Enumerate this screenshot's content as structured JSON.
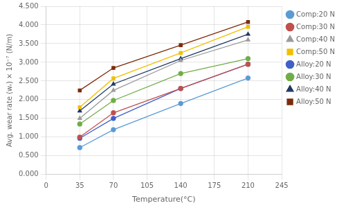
{
  "chart_data": {
    "type": "line",
    "x": [
      35,
      70,
      140,
      210
    ],
    "series": [
      {
        "name": "Comp:20 N",
        "color": "#5B9BD5",
        "marker": "circle",
        "values": [
          0.72,
          1.2,
          1.9,
          2.58
        ]
      },
      {
        "name": "Comp:30 N",
        "color": "#C0504D",
        "marker": "circle",
        "values": [
          1.0,
          1.65,
          2.3,
          2.95
        ]
      },
      {
        "name": "Comp:40 N",
        "color": "#9B9B9B",
        "marker": "triangle",
        "values": [
          1.5,
          2.25,
          3.05,
          3.6
        ]
      },
      {
        "name": "Comp:50 N",
        "color": "#F0C000",
        "marker": "square",
        "values": [
          1.8,
          2.57,
          3.25,
          3.95
        ]
      },
      {
        "name": "Alloy:20 N",
        "color": "#4060C8",
        "marker": "circle",
        "values": [
          0.97,
          1.5,
          2.3,
          2.95
        ]
      },
      {
        "name": "Alloy:30 N",
        "color": "#70AD47",
        "marker": "circle",
        "values": [
          1.35,
          1.98,
          2.7,
          3.1
        ]
      },
      {
        "name": "Alloy:40 N",
        "color": "#1F3864",
        "marker": "triangle",
        "values": [
          1.7,
          2.42,
          3.1,
          3.75
        ]
      },
      {
        "name": "Alloy:50 N",
        "color": "#7B2C0A",
        "marker": "square",
        "values": [
          2.25,
          2.85,
          3.46,
          4.08
        ]
      }
    ],
    "xlabel": "Temperature(°C)",
    "ylabel": "Avg. wear rate (wᵣ) × 10⁻⁷ (N/m)",
    "xlim": [
      0,
      245
    ],
    "ylim": [
      0.0,
      4.5
    ],
    "xticks": [
      0,
      35,
      70,
      105,
      140,
      175,
      210,
      245
    ],
    "yticks": [
      {
        "value": 0,
        "label": "0.000"
      },
      {
        "value": 0.5,
        "label": "0.500"
      },
      {
        "value": 1.0,
        "label": "1.000"
      },
      {
        "value": 1.5,
        "label": "1.500"
      },
      {
        "value": 2.0,
        "label": "2.000"
      },
      {
        "value": 2.5,
        "label": "2.500"
      },
      {
        "value": 3.0,
        "label": "3.000"
      },
      {
        "value": 3.5,
        "label": "3.500"
      },
      {
        "value": 4.0,
        "label": "4.000"
      },
      {
        "value": 4.5,
        "label": "4.500"
      }
    ],
    "grid": true,
    "legend": "right"
  }
}
